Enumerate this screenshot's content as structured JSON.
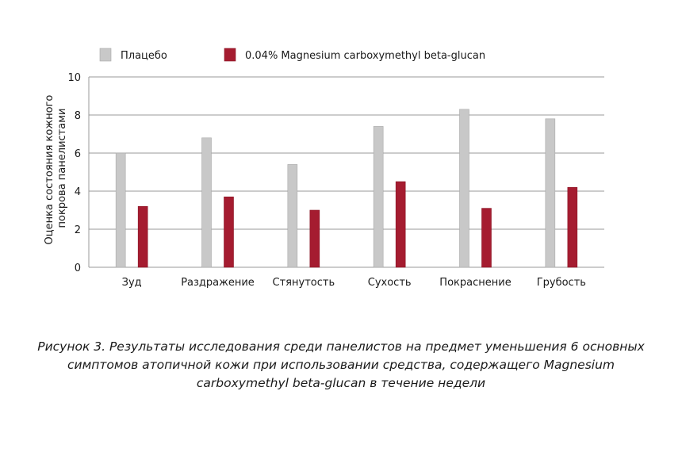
{
  "chart_data": {
    "type": "bar",
    "ylabel_lines": [
      "Оценка состояния кожного",
      "покрова панелистами"
    ],
    "ylim": [
      0,
      10
    ],
    "yticks": [
      0,
      2,
      4,
      6,
      8,
      10
    ],
    "grid": true,
    "legend_position": "top",
    "categories": [
      "Зуд",
      "Раздражение",
      "Стянутость",
      "Сухость",
      "Покраснение",
      "Грубость"
    ],
    "series": [
      {
        "name": "Плацебо",
        "color": "#c8c8c8",
        "stroke": "#a8a8a8",
        "values": [
          6.0,
          6.8,
          5.4,
          7.4,
          8.3,
          7.8
        ]
      },
      {
        "name": "0.04% Magnesium carboxymethyl beta-glucan",
        "color": "#a51c30",
        "stroke": "#8a1425",
        "values": [
          3.2,
          3.7,
          3.0,
          4.5,
          3.1,
          4.2
        ]
      }
    ]
  },
  "caption": "Рисунок 3. Результаты исследования среди панелистов на предмет уменьшения 6 основных симптомов атопичной кожи при использовании средства, содержащего Magnesium carboxymethyl beta-glucan в течение недели"
}
